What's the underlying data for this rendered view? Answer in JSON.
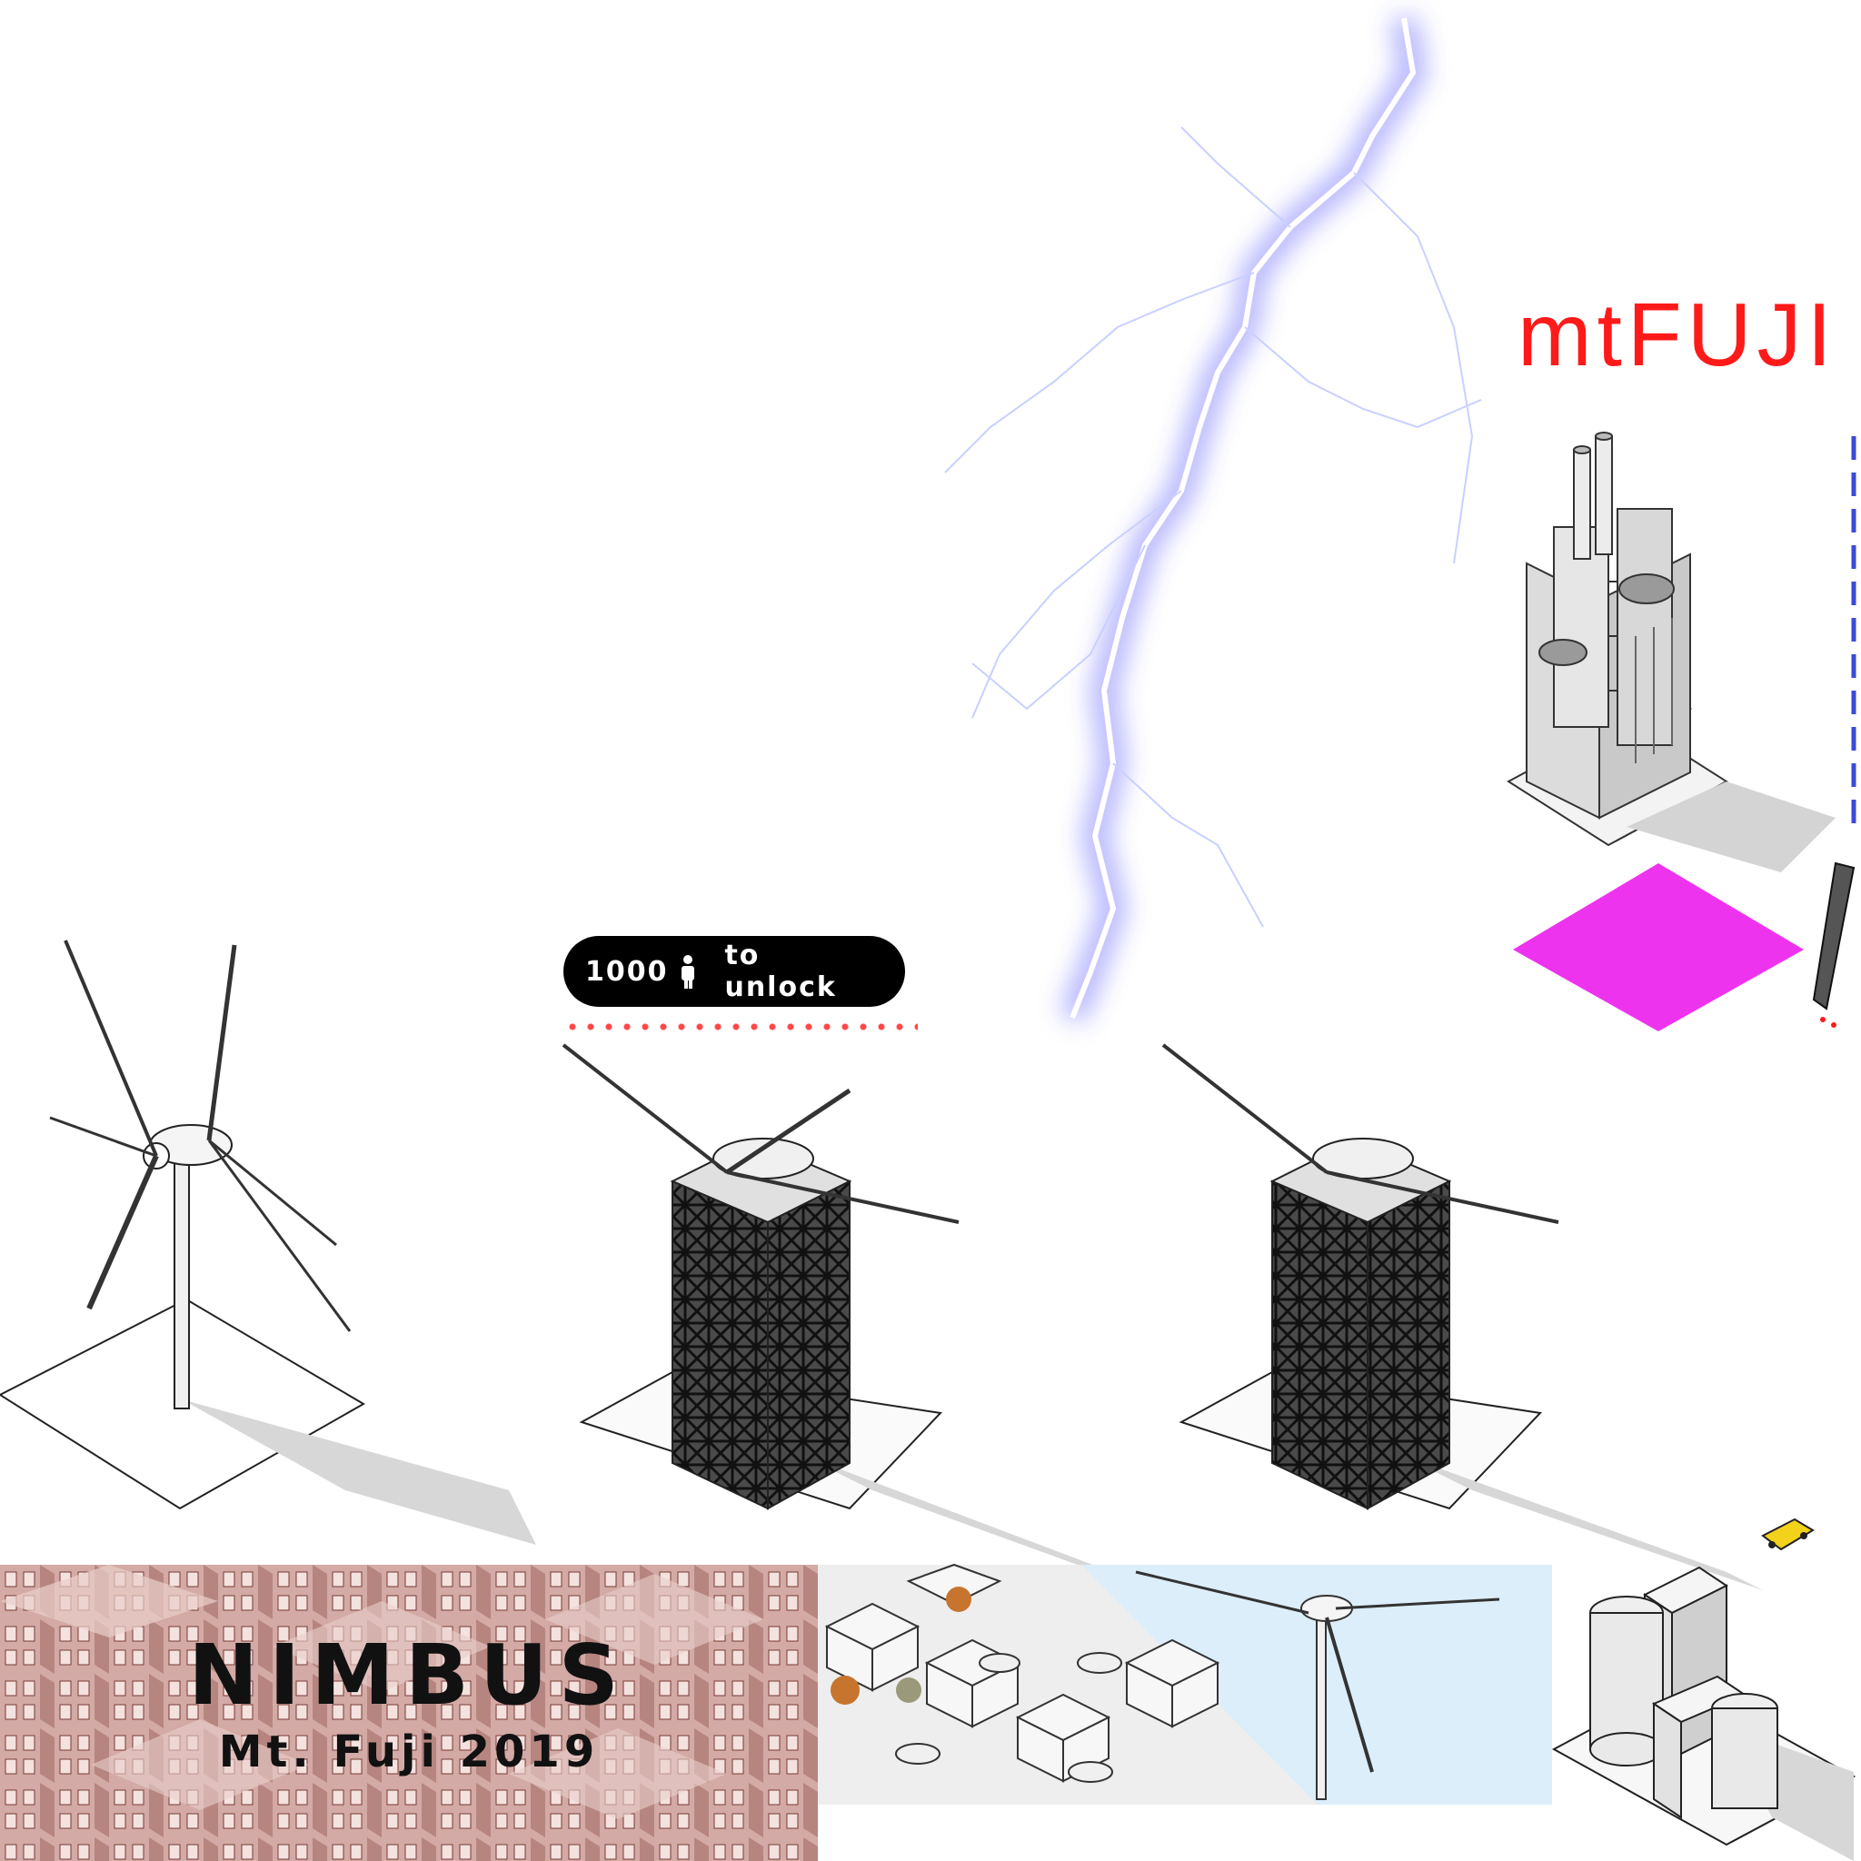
{
  "sprite_title": "mtFUJI",
  "unlock_badge": {
    "cost": "1000",
    "suffix": "to unlock",
    "icon": "person-icon"
  },
  "banner": {
    "title": "NIMBUS",
    "subtitle": "Mt. Fuji 2019"
  },
  "colors": {
    "title_red": "#ff1a1a",
    "tile_magenta": "#ee33ee",
    "lightning": "#6a6aff",
    "banner_bg": "#c99a95",
    "sky": "#dceefa",
    "taxi_yellow": "#f2d21b"
  },
  "sprites": [
    "lightning-bolt",
    "power-plant-building",
    "magenta-tile",
    "vertical-strip",
    "wind-turbine",
    "tower-with-turbine-locked",
    "tower-with-turbine",
    "city-scene",
    "office-building",
    "yellow-taxi"
  ]
}
